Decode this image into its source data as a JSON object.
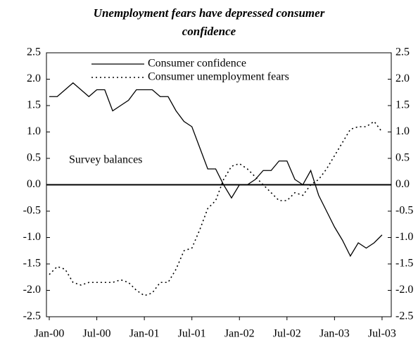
{
  "chart_data": {
    "type": "line",
    "title": "Unemployment fears have depressed consumer confidence",
    "annotation": "Survey balances",
    "categories": [
      "Jan-00",
      null,
      null,
      null,
      null,
      null,
      "Jul-00",
      null,
      null,
      null,
      null,
      null,
      "Jan-01",
      null,
      null,
      null,
      null,
      null,
      "Jul-01",
      null,
      null,
      null,
      null,
      null,
      "Jan-02",
      null,
      null,
      null,
      null,
      null,
      "Jul-02",
      null,
      null,
      null,
      null,
      null,
      "Jan-03",
      null,
      null,
      null,
      null,
      null,
      "Jul-03"
    ],
    "series": [
      {
        "name": "Consumer confidence",
        "color": "#000000",
        "dash": "solid",
        "values": [
          1.67,
          1.67,
          1.8,
          1.93,
          1.8,
          1.67,
          1.8,
          1.8,
          1.4,
          1.5,
          1.6,
          1.8,
          1.8,
          1.8,
          1.67,
          1.67,
          1.4,
          1.2,
          1.1,
          0.7,
          0.3,
          0.3,
          0.0,
          -0.25,
          0.0,
          0.0,
          0.1,
          0.27,
          0.27,
          0.45,
          0.45,
          0.1,
          0.0,
          0.27,
          -0.2,
          -0.5,
          -0.8,
          -1.05,
          -1.35,
          -1.1,
          -1.2,
          -1.1,
          -0.95
        ]
      },
      {
        "name": "Consumer unemployment fears",
        "color": "#000000",
        "dash": "dotted",
        "values": [
          -1.7,
          -1.55,
          -1.6,
          -1.85,
          -1.9,
          -1.85,
          -1.85,
          -1.85,
          -1.85,
          -1.8,
          -1.85,
          -2.0,
          -2.1,
          -2.05,
          -1.85,
          -1.85,
          -1.6,
          -1.25,
          -1.2,
          -0.85,
          -0.45,
          -0.3,
          0.1,
          0.35,
          0.4,
          0.3,
          0.15,
          0.0,
          -0.15,
          -0.3,
          -0.3,
          -0.15,
          -0.2,
          0.0,
          0.1,
          0.3,
          0.55,
          0.8,
          1.05,
          1.1,
          1.1,
          1.2,
          1.0
        ]
      }
    ],
    "ylim": [
      -2.5,
      2.5
    ],
    "yticks": [
      -2.5,
      {
        "value": -2,
        "label": "-2.0"
      },
      -1.5,
      {
        "value": -1,
        "label": "-1.0"
      },
      -0.5,
      {
        "value": 0,
        "label": "0.0"
      },
      0.5,
      {
        "value": 1,
        "label": "1.0"
      },
      1.5,
      {
        "value": 2,
        "label": "2.0"
      },
      2.5
    ],
    "y2lim": [
      -2.5,
      2.5
    ],
    "y2ticks": [
      -2.5,
      {
        "value": -2,
        "label": "-2.0"
      },
      -1.5,
      {
        "value": -1,
        "label": "-1.0"
      },
      -0.5,
      {
        "value": 0,
        "label": "0.0"
      },
      0.5,
      {
        "value": 1,
        "label": "1.0"
      },
      1.5,
      {
        "value": 2,
        "label": "2.0"
      },
      2.5
    ],
    "zero_line": true,
    "legend": "top"
  }
}
